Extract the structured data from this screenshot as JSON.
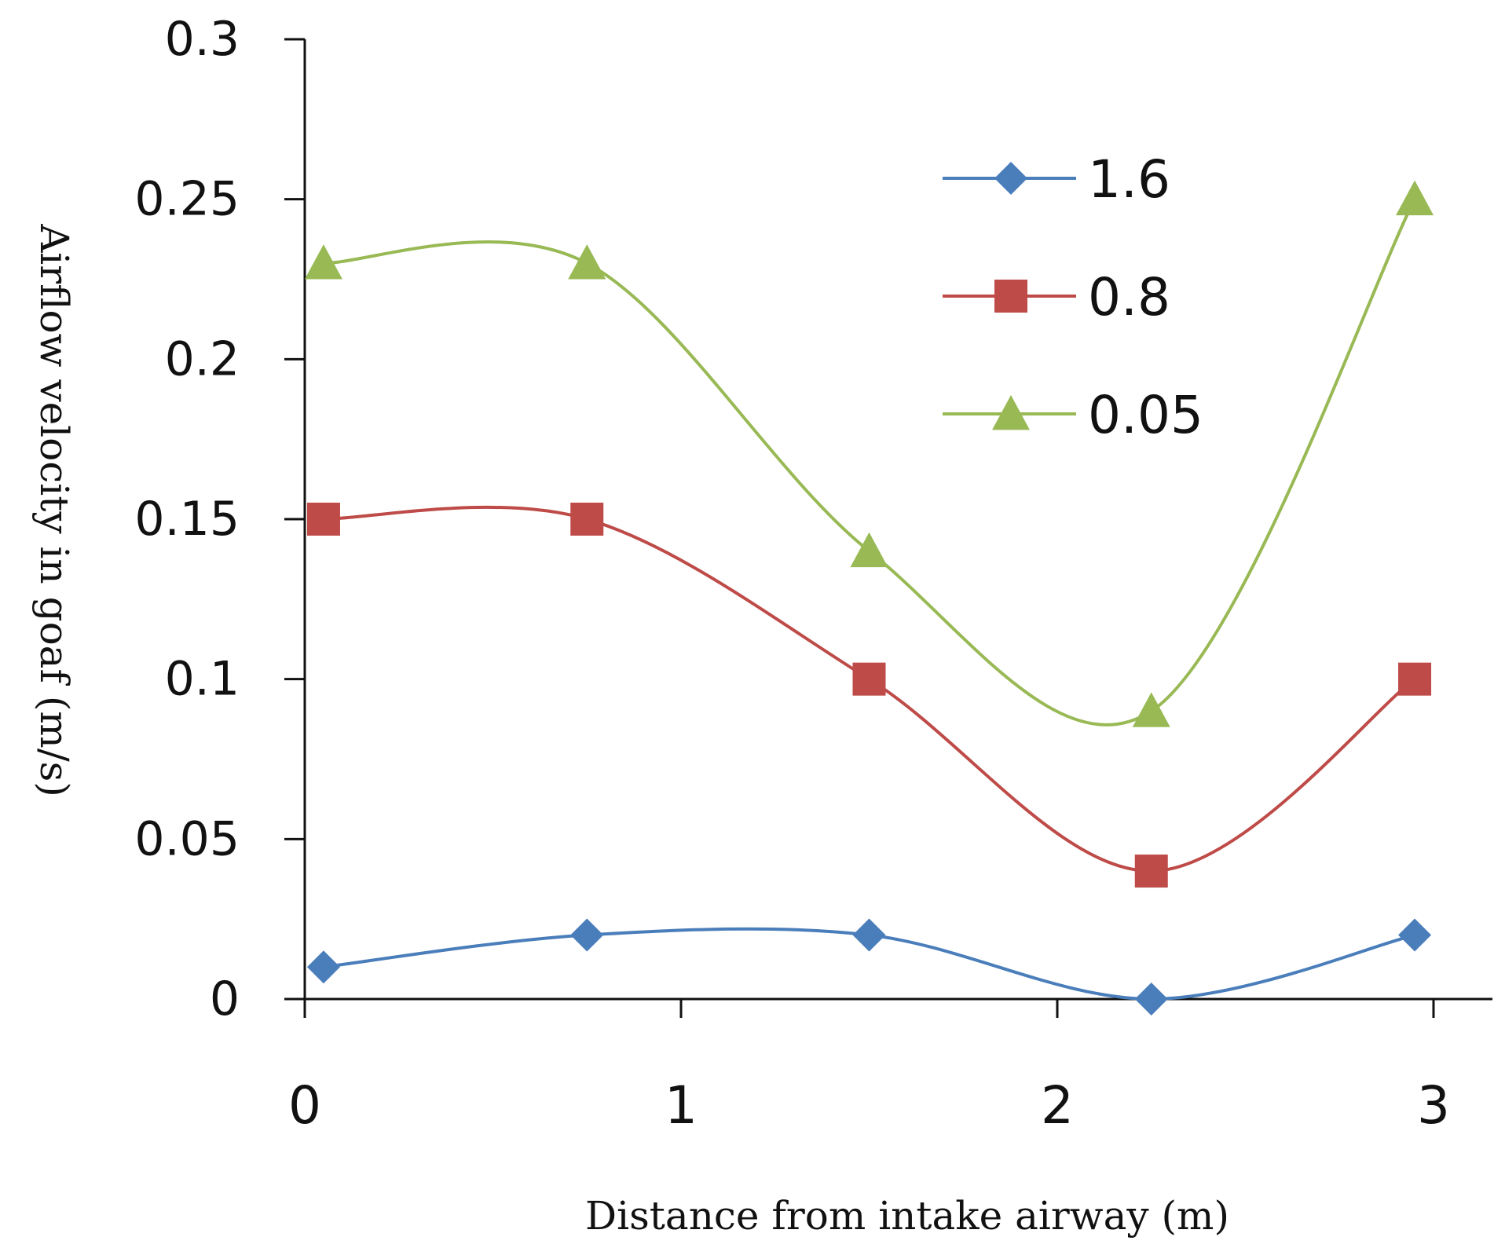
{
  "chart_data": {
    "type": "line",
    "title": "",
    "xlabel": "Distance from intake airway (m)",
    "ylabel": "Airflow velocity in goaf (m/s)",
    "xlim": [
      0,
      3
    ],
    "ylim": [
      0,
      0.3
    ],
    "x_ticks": [
      "0",
      "1",
      "2",
      "3"
    ],
    "y_ticks": [
      "0",
      "0.05",
      "0.1",
      "0.15",
      "0.2",
      "0.25",
      "0.3"
    ],
    "x": [
      0.05,
      0.75,
      1.5,
      2.25,
      2.95
    ],
    "smooth": true,
    "grid": false,
    "legend_position": "top-right",
    "series": [
      {
        "name": "1.6",
        "marker": "diamond",
        "color": "#4a7ebb",
        "values": [
          0.01,
          0.02,
          0.02,
          0.0,
          0.02
        ]
      },
      {
        "name": "0.8",
        "marker": "square",
        "color": "#be4b48",
        "values": [
          0.15,
          0.15,
          0.1,
          0.04,
          0.1
        ]
      },
      {
        "name": "0.05",
        "marker": "triangle",
        "color": "#98b954",
        "values": [
          0.23,
          0.23,
          0.14,
          0.09,
          0.25
        ]
      }
    ]
  }
}
